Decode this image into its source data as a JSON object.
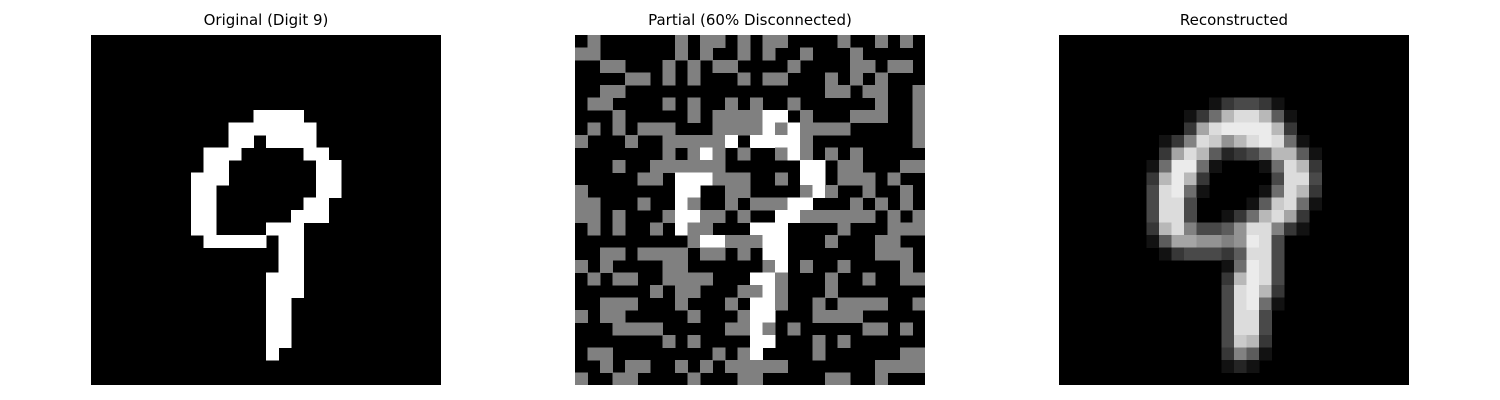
{
  "figure": {
    "panels": [
      {
        "title": "Original (Digit 9)",
        "kind": "binary"
      },
      {
        "title": "Partial (60% Disconnected)",
        "kind": "partial",
        "disconnected_fraction": 0.6
      },
      {
        "title": "Reconstructed",
        "kind": "grayscale"
      }
    ],
    "grid_size": 28,
    "colors": {
      "off": "#000000",
      "on": "#ffffff",
      "disconnected": "#808080"
    }
  }
}
